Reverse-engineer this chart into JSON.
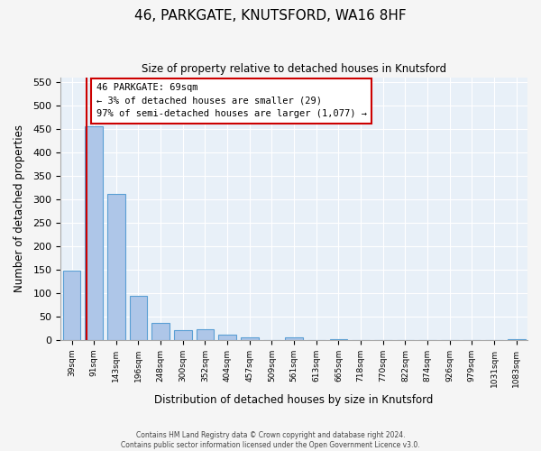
{
  "title": "46, PARKGATE, KNUTSFORD, WA16 8HF",
  "subtitle": "Size of property relative to detached houses in Knutsford",
  "xlabel": "Distribution of detached houses by size in Knutsford",
  "ylabel": "Number of detached properties",
  "bin_labels": [
    "39sqm",
    "91sqm",
    "143sqm",
    "196sqm",
    "248sqm",
    "300sqm",
    "352sqm",
    "404sqm",
    "457sqm",
    "509sqm",
    "561sqm",
    "613sqm",
    "665sqm",
    "718sqm",
    "770sqm",
    "822sqm",
    "874sqm",
    "926sqm",
    "979sqm",
    "1031sqm",
    "1083sqm"
  ],
  "bar_values": [
    148,
    455,
    311,
    93,
    37,
    20,
    22,
    12,
    5,
    0,
    6,
    0,
    2,
    0,
    0,
    0,
    0,
    0,
    0,
    0,
    2
  ],
  "bar_color": "#aec6e8",
  "bar_edge_color": "#5a9fd4",
  "annotation_title": "46 PARKGATE: 69sqm",
  "annotation_line1": "← 3% of detached houses are smaller (29)",
  "annotation_line2": "97% of semi-detached houses are larger (1,077) →",
  "annotation_box_color": "#ffffff",
  "annotation_box_edge": "#cc0000",
  "vline_color": "#cc0000",
  "vline_x": 0.68,
  "ylim": [
    0,
    560
  ],
  "yticks": [
    0,
    50,
    100,
    150,
    200,
    250,
    300,
    350,
    400,
    450,
    500,
    550
  ],
  "background_color": "#e8f0f8",
  "fig_background": "#f5f5f5",
  "footer_line1": "Contains HM Land Registry data © Crown copyright and database right 2024.",
  "footer_line2": "Contains public sector information licensed under the Open Government Licence v3.0."
}
